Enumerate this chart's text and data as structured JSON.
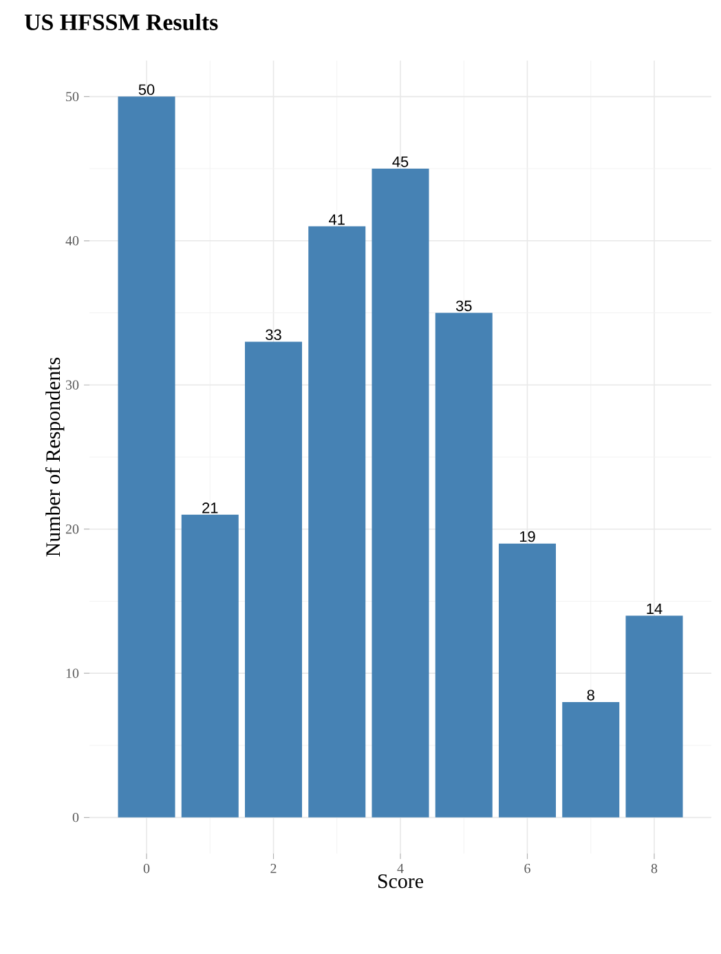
{
  "chart_data": {
    "type": "bar",
    "title": "US HFSSM Results",
    "xlabel": "Score",
    "ylabel": "Number of Respondents",
    "x": [
      0,
      1,
      2,
      3,
      4,
      5,
      6,
      7,
      8
    ],
    "values": [
      50,
      21,
      33,
      41,
      45,
      35,
      19,
      8,
      14
    ],
    "color": "#4682b4",
    "xlim": [
      -0.9,
      8.9
    ],
    "xticks": [
      0,
      2,
      4,
      6,
      8
    ],
    "ylim": [
      -2.5,
      52.5
    ],
    "yticks": [
      0,
      10,
      20,
      30,
      40,
      50
    ],
    "grid": true,
    "data_labels": true
  }
}
